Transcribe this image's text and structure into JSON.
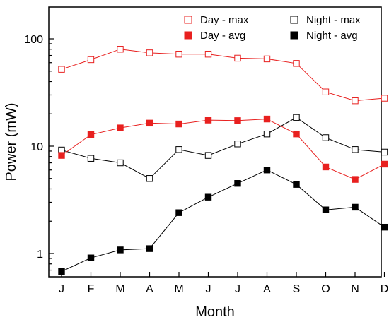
{
  "chart_data": {
    "type": "line",
    "xlabel": "Month",
    "ylabel": "Power (mW)",
    "yscale": "log",
    "ylim": [
      0.6,
      200
    ],
    "yticks": [
      {
        "value": 1,
        "label": "1"
      },
      {
        "value": 10,
        "label": "10"
      },
      {
        "value": 100,
        "label": "100"
      }
    ],
    "categories": [
      "J",
      "F",
      "M",
      "A",
      "M",
      "J",
      "J",
      "A",
      "S",
      "O",
      "N",
      "D"
    ],
    "grid": false,
    "legend_position": "top-right",
    "series": [
      {
        "name": "Day - max",
        "color": "#e8201f",
        "marker": "open-square",
        "values": [
          52,
          64,
          80,
          74,
          72,
          72,
          66,
          65,
          59,
          32,
          26.5,
          28
        ]
      },
      {
        "name": "Night - max",
        "color": "#000000",
        "marker": "open-square",
        "values": [
          9.2,
          7.7,
          7.0,
          5.0,
          9.3,
          8.2,
          10.5,
          13,
          18.5,
          12,
          9.3,
          8.8
        ]
      },
      {
        "name": "Day - avg",
        "color": "#e8201f",
        "marker": "filled-square",
        "values": [
          8.2,
          12.8,
          14.8,
          16.4,
          16.1,
          17.5,
          17.3,
          17.9,
          13,
          6.4,
          4.9,
          6.8
        ]
      },
      {
        "name": "Night - avg",
        "color": "#000000",
        "marker": "filled-square",
        "values": [
          0.68,
          0.91,
          1.08,
          1.11,
          2.4,
          3.35,
          4.5,
          6.0,
          4.4,
          2.55,
          2.7,
          1.76
        ]
      }
    ]
  }
}
